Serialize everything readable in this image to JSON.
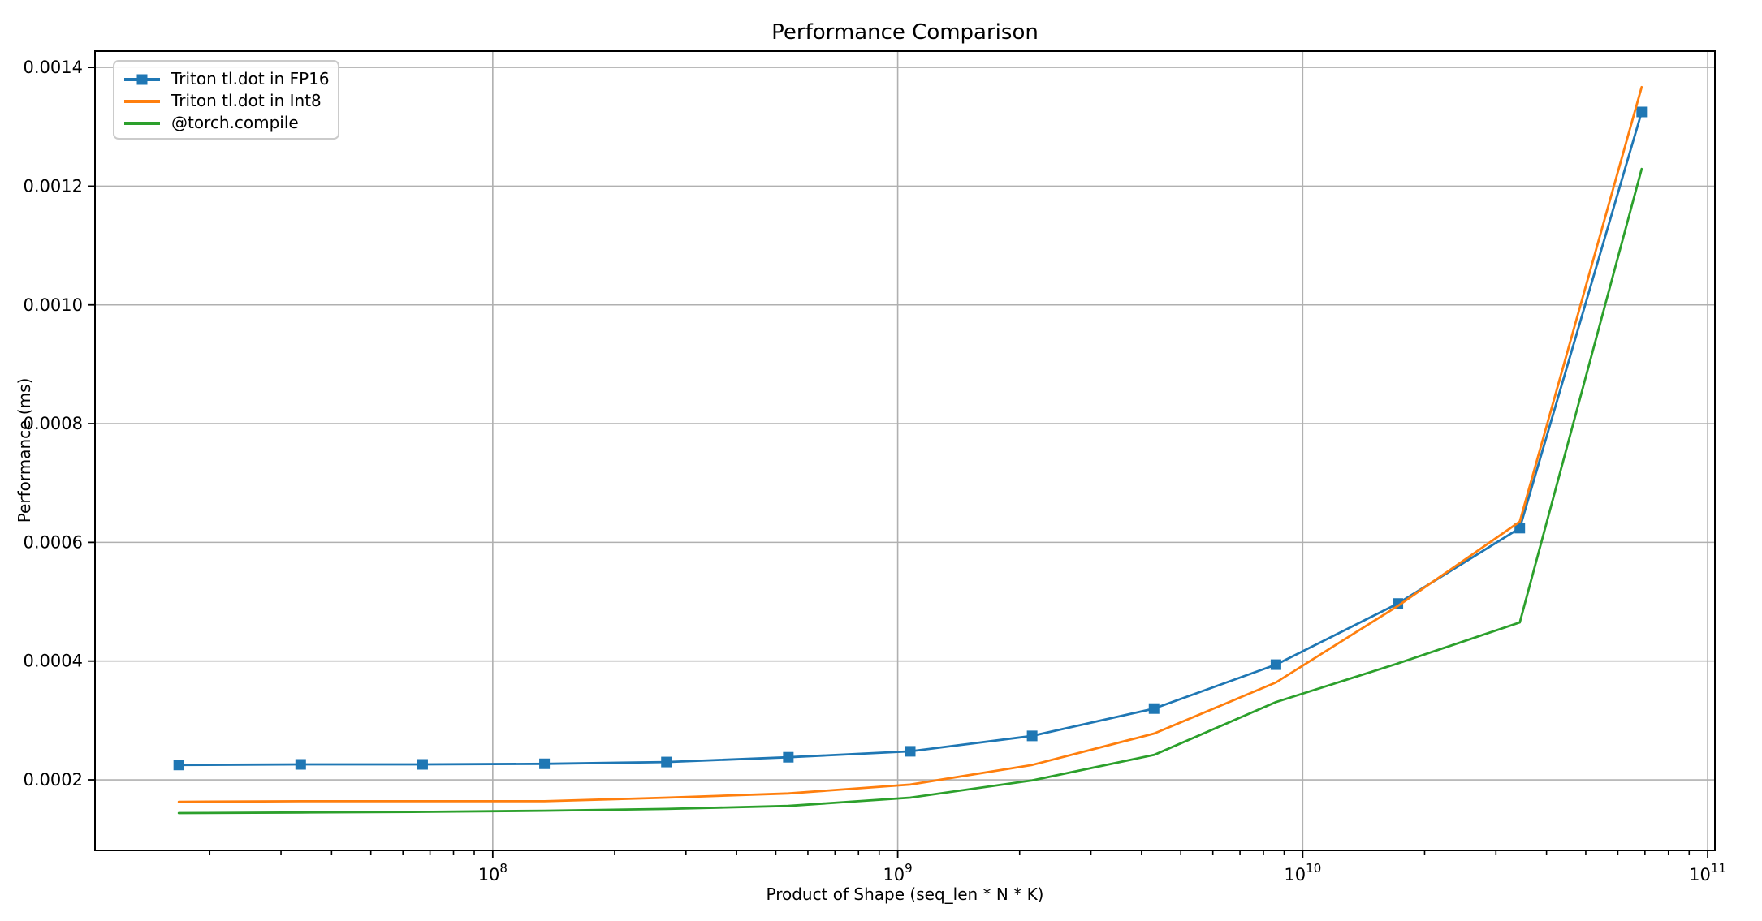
{
  "figure": {
    "background": "#ffffff"
  },
  "chart_data": {
    "type": "line",
    "title": "Performance Comparison",
    "xlabel": "Product of Shape (seq_len * N * K)",
    "ylabel": "Performance (ms)",
    "x_scale": "log",
    "y_scale": "linear",
    "grid": true,
    "grid_color": "#b0b0b0",
    "spine_color": "#000000",
    "text_color": "#000000",
    "legend_position": "upper left",
    "xlim": [
      10420000,
      104200000000
    ],
    "ylim": [
      8.11e-05,
      0.0014275
    ],
    "x": [
      16777216,
      33554432,
      67108864,
      134217728,
      268435456,
      536870912,
      1073741824,
      2147483648,
      4294967296,
      8589934592,
      17179869184,
      34359738368,
      68719476736
    ],
    "series": [
      {
        "name": "Triton tl.dot in FP16",
        "key": "triton-fp16",
        "color": "#1f77b4",
        "marker": "square",
        "values": [
          0.000225,
          0.000226,
          0.000226,
          0.000227,
          0.00023,
          0.000238,
          0.000248,
          0.000274,
          0.00032,
          0.000394,
          0.000497,
          0.000624,
          0.001325
        ]
      },
      {
        "name": "Triton tl.dot in Int8",
        "key": "triton-int8",
        "color": "#ff7f0e",
        "marker": "none",
        "values": [
          0.000163,
          0.000164,
          0.000164,
          0.000164,
          0.00017,
          0.000177,
          0.000192,
          0.000225,
          0.000278,
          0.000364,
          0.000493,
          0.000635,
          0.001367
        ]
      },
      {
        "name": "@torch.compile",
        "key": "torch-compile",
        "color": "#2ca02c",
        "marker": "none",
        "values": [
          0.000144,
          0.000145,
          0.000146,
          0.000148,
          0.000151,
          0.000156,
          0.00017,
          0.000199,
          0.000242,
          0.000331,
          0.000396,
          0.000465,
          0.001229
        ]
      }
    ],
    "x_ticks": [
      {
        "base": "10",
        "exponent": "8",
        "value": 100000000
      },
      {
        "base": "10",
        "exponent": "9",
        "value": 1000000000
      },
      {
        "base": "10",
        "exponent": "10",
        "value": 10000000000
      },
      {
        "base": "10",
        "exponent": "11",
        "value": 100000000000
      }
    ],
    "y_ticks": [
      {
        "label": "0.0002",
        "value": 0.0002
      },
      {
        "label": "0.0004",
        "value": 0.0004
      },
      {
        "label": "0.0006",
        "value": 0.0006
      },
      {
        "label": "0.0008",
        "value": 0.0008
      },
      {
        "label": "0.0010",
        "value": 0.001
      },
      {
        "label": "0.0012",
        "value": 0.0012
      },
      {
        "label": "0.0014",
        "value": 0.0014
      }
    ]
  }
}
